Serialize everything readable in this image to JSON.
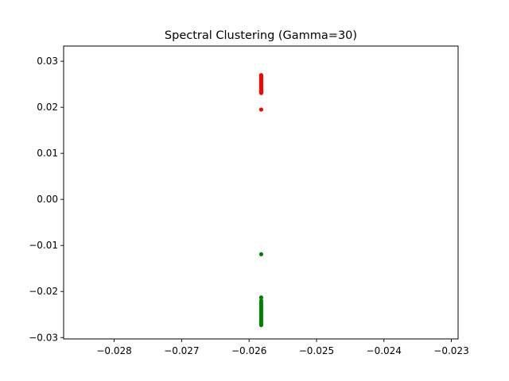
{
  "chart_data": {
    "type": "scatter",
    "title": "Spectral Clustering (Gamma=30)",
    "xlabel": "",
    "ylabel": "",
    "xlim": [
      -0.02875,
      -0.0229
    ],
    "ylim": [
      -0.0303,
      0.0333
    ],
    "x_ticks": [
      {
        "value": -0.028,
        "label": "−0.028"
      },
      {
        "value": -0.027,
        "label": "−0.027"
      },
      {
        "value": -0.026,
        "label": "−0.026"
      },
      {
        "value": -0.025,
        "label": "−0.025"
      },
      {
        "value": -0.024,
        "label": "−0.024"
      },
      {
        "value": -0.023,
        "label": "−0.023"
      }
    ],
    "y_ticks": [
      {
        "value": 0.03,
        "label": "0.03"
      },
      {
        "value": 0.02,
        "label": "0.02"
      },
      {
        "value": 0.01,
        "label": "0.01"
      },
      {
        "value": 0.0,
        "label": "0.00"
      },
      {
        "value": -0.01,
        "label": "−0.01"
      },
      {
        "value": -0.02,
        "label": "−0.02"
      },
      {
        "value": -0.03,
        "label": "−0.03"
      }
    ],
    "grid": false,
    "legend": "none",
    "series": [
      {
        "color": "#ff0000",
        "points": [
          {
            "x": -0.02582,
            "y": 0.0195
          },
          {
            "x": -0.02582,
            "y": 0.0231
          },
          {
            "x": -0.02582,
            "y": 0.0234
          },
          {
            "x": -0.02582,
            "y": 0.0237
          },
          {
            "x": -0.02582,
            "y": 0.024
          },
          {
            "x": -0.02582,
            "y": 0.0243
          },
          {
            "x": -0.02582,
            "y": 0.0246
          },
          {
            "x": -0.02582,
            "y": 0.0249
          },
          {
            "x": -0.02582,
            "y": 0.0252
          },
          {
            "x": -0.02582,
            "y": 0.0255
          },
          {
            "x": -0.02582,
            "y": 0.0258
          },
          {
            "x": -0.02582,
            "y": 0.0261
          },
          {
            "x": -0.02582,
            "y": 0.0264
          },
          {
            "x": -0.02582,
            "y": 0.0267
          },
          {
            "x": -0.02582,
            "y": 0.027
          }
        ]
      },
      {
        "color": "#008000",
        "points": [
          {
            "x": -0.02582,
            "y": -0.0119
          },
          {
            "x": -0.02582,
            "y": -0.0213
          },
          {
            "x": -0.02582,
            "y": -0.022
          },
          {
            "x": -0.02582,
            "y": -0.0225
          },
          {
            "x": -0.02582,
            "y": -0.0229
          },
          {
            "x": -0.02582,
            "y": -0.0233
          },
          {
            "x": -0.02582,
            "y": -0.0237
          },
          {
            "x": -0.02582,
            "y": -0.0241
          },
          {
            "x": -0.02582,
            "y": -0.0245
          },
          {
            "x": -0.02582,
            "y": -0.0249
          },
          {
            "x": -0.02582,
            "y": -0.0253
          },
          {
            "x": -0.02582,
            "y": -0.0257
          },
          {
            "x": -0.02582,
            "y": -0.0261
          },
          {
            "x": -0.02582,
            "y": -0.0265
          },
          {
            "x": -0.02582,
            "y": -0.0269
          },
          {
            "x": -0.02582,
            "y": -0.0273
          }
        ]
      }
    ]
  }
}
